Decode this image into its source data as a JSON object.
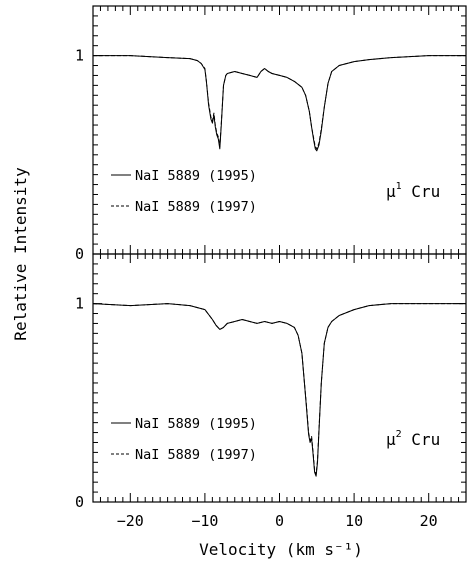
{
  "chart_data": {
    "type": "line",
    "xlabel": "Velocity (km s⁻¹)",
    "ylabel": "Relative Intensity",
    "xlim": [
      -25,
      25
    ],
    "x_ticks": [
      -20,
      -10,
      0,
      10,
      20
    ],
    "x_tick_labels": [
      "−20",
      "−10",
      "0",
      "10",
      "20"
    ],
    "panels": [
      {
        "star_prefix": "μ",
        "star_sup": "1",
        "star_suffix": "Cru",
        "ylim": [
          0,
          1.25
        ],
        "y_ticks": [
          0,
          1
        ],
        "y_tick_labels": [
          "0",
          "1"
        ],
        "legend": [
          {
            "label": "NaI 5889 (1995)",
            "style": "solid"
          },
          {
            "label": "NaI 5889 (1997)",
            "style": "dashed"
          }
        ],
        "series": [
          {
            "label": "NaI 5889 (1995)",
            "style": "solid",
            "x": [
              -25,
              -20,
              -15,
              -12,
              -11,
              -10.5,
              -10,
              -9.8,
              -9.5,
              -9.2,
              -9,
              -8.8,
              -8.6,
              -8.4,
              -8.2,
              -8,
              -7.8,
              -7.5,
              -7.2,
              -7,
              -6,
              -5,
              -4,
              -3,
              -2.5,
              -2,
              -1.5,
              -1,
              0,
              1,
              2,
              3,
              3.5,
              4,
              4.3,
              4.6,
              4.8,
              5,
              5.3,
              5.6,
              6,
              6.5,
              7,
              8,
              10,
              12,
              15,
              20,
              25
            ],
            "y": [
              1.0,
              1.0,
              0.99,
              0.985,
              0.975,
              0.96,
              0.93,
              0.87,
              0.75,
              0.68,
              0.66,
              0.7,
              0.64,
              0.6,
              0.58,
              0.53,
              0.65,
              0.85,
              0.9,
              0.91,
              0.92,
              0.91,
              0.9,
              0.89,
              0.92,
              0.935,
              0.92,
              0.91,
              0.9,
              0.89,
              0.87,
              0.84,
              0.8,
              0.72,
              0.64,
              0.57,
              0.53,
              0.52,
              0.55,
              0.62,
              0.74,
              0.86,
              0.92,
              0.95,
              0.97,
              0.98,
              0.99,
              1.0,
              1.0
            ]
          },
          {
            "label": "NaI 5889 (1997)",
            "style": "dashed",
            "x": [
              -25,
              -20,
              -15,
              -12,
              -11,
              -10.5,
              -10,
              -9.8,
              -9.5,
              -9.2,
              -9,
              -8.8,
              -8.6,
              -8.4,
              -8.2,
              -8,
              -7.8,
              -7.5,
              -7.2,
              -7,
              -6,
              -5,
              -4,
              -3,
              -2.5,
              -2,
              -1.5,
              -1,
              0,
              1,
              2,
              3,
              3.5,
              4,
              4.3,
              4.6,
              4.8,
              5,
              5.3,
              5.6,
              6,
              6.5,
              7,
              8,
              10,
              12,
              15,
              20,
              25
            ],
            "y": [
              1.0,
              1.0,
              0.99,
              0.985,
              0.975,
              0.96,
              0.935,
              0.87,
              0.76,
              0.69,
              0.67,
              0.71,
              0.65,
              0.61,
              0.59,
              0.54,
              0.66,
              0.85,
              0.9,
              0.91,
              0.92,
              0.91,
              0.9,
              0.89,
              0.92,
              0.935,
              0.92,
              0.91,
              0.9,
              0.89,
              0.87,
              0.84,
              0.8,
              0.72,
              0.64,
              0.58,
              0.54,
              0.53,
              0.56,
              0.63,
              0.74,
              0.86,
              0.92,
              0.95,
              0.97,
              0.98,
              0.99,
              1.0,
              1.0
            ]
          }
        ]
      },
      {
        "star_prefix": "μ",
        "star_sup": "2",
        "star_suffix": "Cru",
        "ylim": [
          0,
          1.25
        ],
        "y_ticks": [
          0,
          1
        ],
        "y_tick_labels": [
          "0",
          "1"
        ],
        "legend": [
          {
            "label": "NaI 5889 (1995)",
            "style": "solid"
          },
          {
            "label": "NaI 5889 (1997)",
            "style": "dashed"
          }
        ],
        "series": [
          {
            "label": "NaI 5889 (1995)",
            "style": "solid",
            "x": [
              -25,
              -20,
              -15,
              -12,
              -10,
              -9,
              -8.5,
              -8,
              -7.5,
              -7,
              -6,
              -5,
              -4,
              -3,
              -2,
              -1,
              0,
              1,
              2,
              2.5,
              3,
              3.3,
              3.6,
              3.9,
              4.1,
              4.3,
              4.5,
              4.7,
              4.9,
              5.1,
              5.3,
              5.6,
              6,
              6.5,
              7,
              8,
              10,
              12,
              15,
              20,
              25
            ],
            "y": [
              1.0,
              0.99,
              1.0,
              0.99,
              0.97,
              0.92,
              0.89,
              0.87,
              0.88,
              0.9,
              0.91,
              0.92,
              0.91,
              0.9,
              0.91,
              0.9,
              0.91,
              0.9,
              0.88,
              0.84,
              0.75,
              0.62,
              0.48,
              0.34,
              0.3,
              0.32,
              0.24,
              0.15,
              0.13,
              0.2,
              0.36,
              0.6,
              0.8,
              0.88,
              0.91,
              0.94,
              0.97,
              0.99,
              1.0,
              1.0,
              1.0
            ]
          },
          {
            "label": "NaI 5889 (1997)",
            "style": "dashed",
            "x": [
              -25,
              -20,
              -15,
              -12,
              -10,
              -9,
              -8.5,
              -8,
              -7.5,
              -7,
              -6,
              -5,
              -4,
              -3,
              -2,
              -1,
              0,
              1,
              2,
              2.5,
              3,
              3.3,
              3.6,
              3.9,
              4.1,
              4.3,
              4.5,
              4.7,
              4.9,
              5.1,
              5.3,
              5.6,
              6,
              6.5,
              7,
              8,
              10,
              12,
              15,
              20,
              25
            ],
            "y": [
              1.0,
              0.99,
              1.0,
              0.99,
              0.97,
              0.92,
              0.89,
              0.87,
              0.88,
              0.9,
              0.91,
              0.92,
              0.91,
              0.9,
              0.91,
              0.9,
              0.91,
              0.9,
              0.88,
              0.84,
              0.75,
              0.62,
              0.49,
              0.35,
              0.31,
              0.33,
              0.25,
              0.16,
              0.14,
              0.21,
              0.37,
              0.6,
              0.8,
              0.88,
              0.91,
              0.94,
              0.97,
              0.99,
              1.0,
              1.0,
              1.0
            ]
          }
        ]
      }
    ]
  }
}
